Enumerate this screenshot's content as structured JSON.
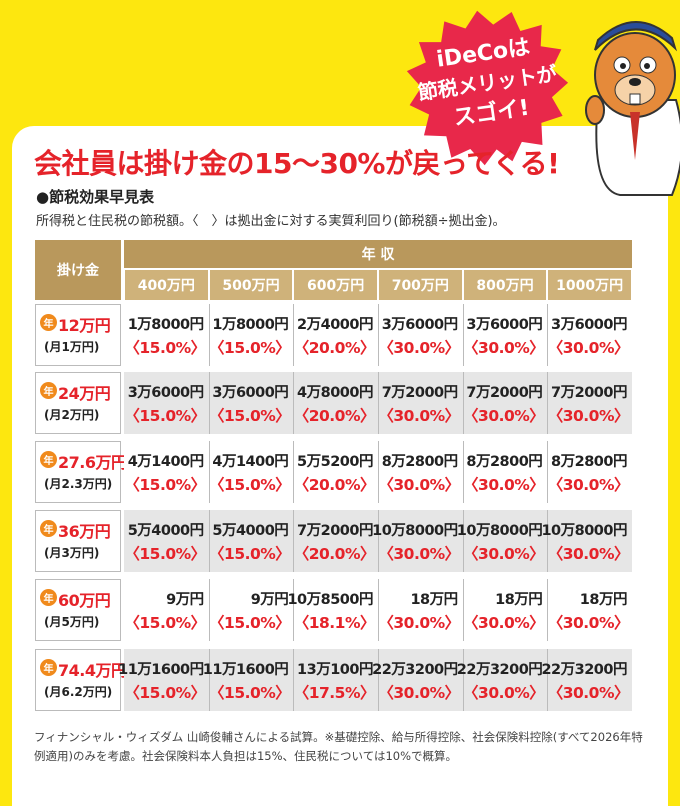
{
  "badge": {
    "lines": [
      "iDeCoは",
      "節税メリットが",
      "スゴイ!"
    ]
  },
  "title": "会社員は掛け金の15〜30%が戻ってくる!",
  "section": "●節税効果早見表",
  "note": "所得税と住民税の節税額。〈　〉は拠出金に対する実質利回り(節税額÷拠出金)。",
  "table": {
    "corner": "掛け金",
    "income_header": "年 収",
    "year_mark": "年",
    "columns": [
      "400万円",
      "500万円",
      "600万円",
      "700万円",
      "800万円",
      "1000万円"
    ],
    "rows": [
      {
        "annual": "12万円",
        "monthly": "(月1万円)",
        "cells": [
          {
            "amount": "1万8000円",
            "rate": "〈15.0%〉"
          },
          {
            "amount": "1万8000円",
            "rate": "〈15.0%〉"
          },
          {
            "amount": "2万4000円",
            "rate": "〈20.0%〉"
          },
          {
            "amount": "3万6000円",
            "rate": "〈30.0%〉"
          },
          {
            "amount": "3万6000円",
            "rate": "〈30.0%〉"
          },
          {
            "amount": "3万6000円",
            "rate": "〈30.0%〉"
          }
        ]
      },
      {
        "annual": "24万円",
        "monthly": "(月2万円)",
        "cells": [
          {
            "amount": "3万6000円",
            "rate": "〈15.0%〉"
          },
          {
            "amount": "3万6000円",
            "rate": "〈15.0%〉"
          },
          {
            "amount": "4万8000円",
            "rate": "〈20.0%〉"
          },
          {
            "amount": "7万2000円",
            "rate": "〈30.0%〉"
          },
          {
            "amount": "7万2000円",
            "rate": "〈30.0%〉"
          },
          {
            "amount": "7万2000円",
            "rate": "〈30.0%〉"
          }
        ]
      },
      {
        "annual": "27.6万円",
        "monthly": "(月2.3万円)",
        "cells": [
          {
            "amount": "4万1400円",
            "rate": "〈15.0%〉"
          },
          {
            "amount": "4万1400円",
            "rate": "〈15.0%〉"
          },
          {
            "amount": "5万5200円",
            "rate": "〈20.0%〉"
          },
          {
            "amount": "8万2800円",
            "rate": "〈30.0%〉"
          },
          {
            "amount": "8万2800円",
            "rate": "〈30.0%〉"
          },
          {
            "amount": "8万2800円",
            "rate": "〈30.0%〉"
          }
        ]
      },
      {
        "annual": "36万円",
        "monthly": "(月3万円)",
        "cells": [
          {
            "amount": "5万4000円",
            "rate": "〈15.0%〉"
          },
          {
            "amount": "5万4000円",
            "rate": "〈15.0%〉"
          },
          {
            "amount": "7万2000円",
            "rate": "〈20.0%〉"
          },
          {
            "amount": "10万8000円",
            "rate": "〈30.0%〉"
          },
          {
            "amount": "10万8000円",
            "rate": "〈30.0%〉"
          },
          {
            "amount": "10万8000円",
            "rate": "〈30.0%〉"
          }
        ]
      },
      {
        "annual": "60万円",
        "monthly": "(月5万円)",
        "cells": [
          {
            "amount": "9万円",
            "rate": "〈15.0%〉"
          },
          {
            "amount": "9万円",
            "rate": "〈15.0%〉"
          },
          {
            "amount": "10万8500円",
            "rate": "〈18.1%〉"
          },
          {
            "amount": "18万円",
            "rate": "〈30.0%〉"
          },
          {
            "amount": "18万円",
            "rate": "〈30.0%〉"
          },
          {
            "amount": "18万円",
            "rate": "〈30.0%〉"
          }
        ]
      },
      {
        "annual": "74.4万円",
        "monthly": "(月6.2万円)",
        "cells": [
          {
            "amount": "11万1600円",
            "rate": "〈15.0%〉"
          },
          {
            "amount": "11万1600円",
            "rate": "〈15.0%〉"
          },
          {
            "amount": "13万100円",
            "rate": "〈17.5%〉"
          },
          {
            "amount": "22万3200円",
            "rate": "〈30.0%〉"
          },
          {
            "amount": "22万3200円",
            "rate": "〈30.0%〉"
          },
          {
            "amount": "22万3200円",
            "rate": "〈30.0%〉"
          }
        ]
      }
    ]
  },
  "footer": "フィナンシャル・ウィズダム 山崎俊輔さんによる試算。※基礎控除、給与所得控除、社会保険料控除(すべて2026年特例適用)のみを考慮。社会保険料本人負担は15%、住民税については10%で概算。"
}
